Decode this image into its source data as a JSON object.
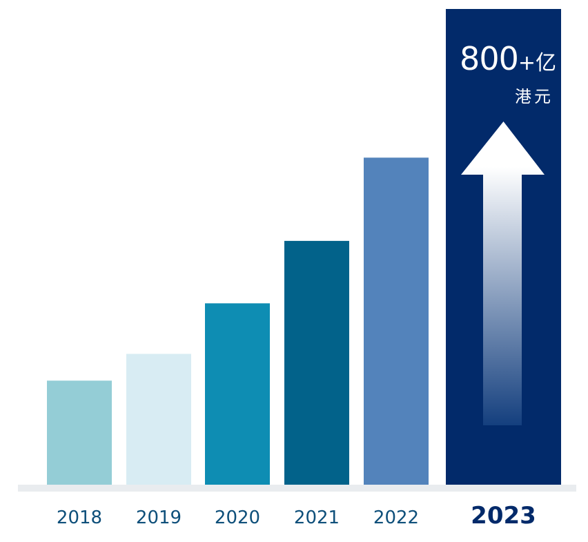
{
  "chart_data": {
    "type": "bar",
    "categories": [
      "2018",
      "2019",
      "2020",
      "2021",
      "2022",
      "2023"
    ],
    "values": [
      175,
      220,
      305,
      410,
      550,
      800
    ],
    "highlight": {
      "category": "2023",
      "value_text": "800",
      "plus": "+",
      "unit_1": "亿",
      "unit_2": "港元"
    },
    "colors": [
      "#94cdd6",
      "#d8ecf3",
      "#0e8db3",
      "#02628a",
      "#5383bb",
      "#022a6a"
    ],
    "arrow": {
      "top_color": "#ffffff",
      "bottom_color": "#143f7e"
    },
    "baseline_color": "#e9ecef",
    "label_color": "#0e4f7a",
    "highlight_label_color": "#022a6a"
  }
}
